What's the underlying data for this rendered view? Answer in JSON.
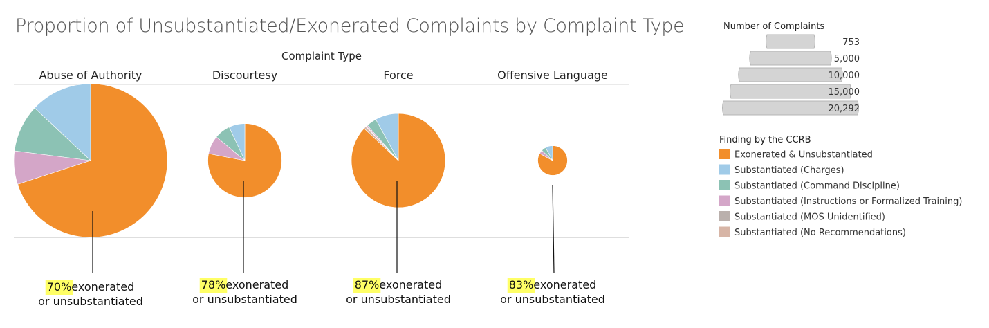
{
  "chart_data": {
    "type": "pie",
    "title": "Proportion of Unsubstantiated/Exonerated Complaints by Complaint Type",
    "column_header": "Complaint Type",
    "categories": [
      "Abuse of Authority",
      "Discourtesy",
      "Force",
      "Offensive Language"
    ],
    "finding_legend": {
      "title": "Finding by the CCRB",
      "items": [
        {
          "label": "Exonerated & Unsubstantiated",
          "color": "#F28E2B"
        },
        {
          "label": "Substantiated (Charges)",
          "color": "#A0CBE8"
        },
        {
          "label": "Substantiated (Command Discipline)",
          "color": "#8CC2B4"
        },
        {
          "label": "Substantiated (Instructions or Formalized Training)",
          "color": "#D4A6C8"
        },
        {
          "label": "Substantiated (MOS Unidentified)",
          "color": "#BAB0AC"
        },
        {
          "label": "Substantiated (No Recommendations)",
          "color": "#D7B5A6"
        }
      ]
    },
    "size_legend": {
      "title": "Number of Complaints",
      "values": [
        "753",
        "5,000",
        "10,000",
        "15,000",
        "20,292"
      ]
    },
    "pies": [
      {
        "category": "Abuse of Authority",
        "total": 20292,
        "shares": [
          0.7,
          0.13,
          0.1,
          0.07,
          0.0,
          0.0
        ],
        "annotation_pct": "70%",
        "annotation_text": "exonerated",
        "annotation_line2": "or unsubstantiated"
      },
      {
        "category": "Discourtesy",
        "total": 4700,
        "shares": [
          0.78,
          0.07,
          0.07,
          0.08,
          0.0,
          0.0
        ],
        "annotation_pct": "78%",
        "annotation_text": "exonerated",
        "annotation_line2": "or unsubstantiated"
      },
      {
        "category": "Force",
        "total": 7600,
        "shares": [
          0.87,
          0.08,
          0.035,
          0.005,
          0.002,
          0.008
        ],
        "annotation_pct": "87%",
        "annotation_text": "exonerated",
        "annotation_line2": "or unsubstantiated"
      },
      {
        "category": "Offensive Language",
        "total": 753,
        "shares": [
          0.83,
          0.08,
          0.05,
          0.04,
          0.0,
          0.0
        ],
        "annotation_pct": "83%",
        "annotation_text": "exonerated",
        "annotation_line2": "or unsubstantiated"
      }
    ],
    "highlight_color": "#FFFF66"
  }
}
